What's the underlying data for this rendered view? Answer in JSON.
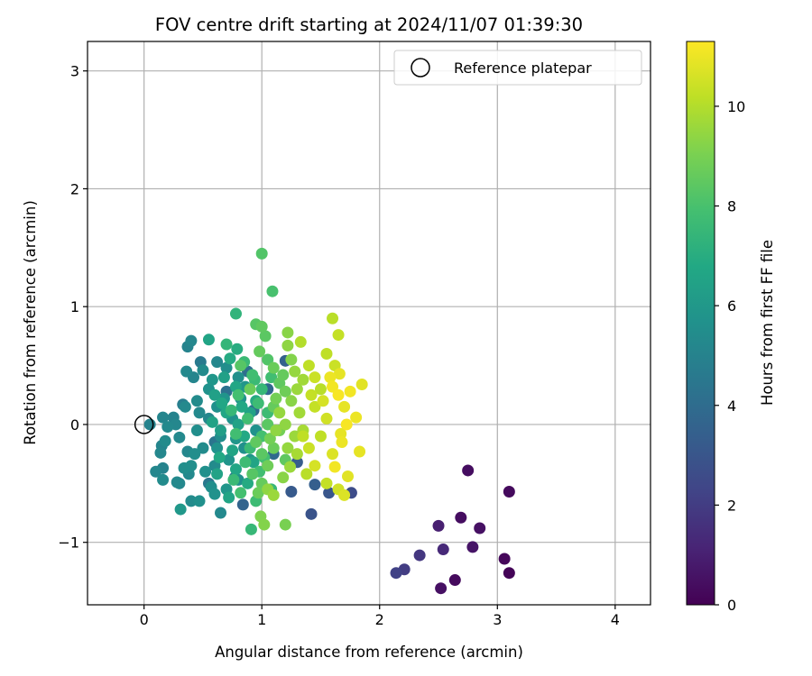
{
  "chart_data": {
    "type": "scatter",
    "title": "FOV centre drift starting at 2024/11/07 01:39:30",
    "xlabel": "Angular distance from reference (arcmin)",
    "ylabel": "Rotation from reference (arcmin)",
    "xlim": [
      -0.48,
      4.3
    ],
    "ylim": [
      -1.53,
      3.25
    ],
    "xticks": [
      0,
      1,
      2,
      3,
      4
    ],
    "yticks": [
      -1,
      0,
      1,
      2,
      3
    ],
    "grid": true,
    "legend": {
      "placement": "top-right",
      "entries": [
        "Reference platepar"
      ]
    },
    "reference_point": {
      "name": "Reference platepar",
      "x": 0,
      "y": 0,
      "marker": "open-circle"
    },
    "colorbar": {
      "label": "Hours from first FF file",
      "min": 0,
      "max": 11.3,
      "ticks": [
        0,
        2,
        4,
        6,
        8,
        10
      ],
      "colormap": "viridis"
    },
    "points": [
      {
        "x": 2.75,
        "y": -0.39,
        "c": 0.4
      },
      {
        "x": 3.1,
        "y": -0.57,
        "c": 0.3
      },
      {
        "x": 2.5,
        "y": -0.86,
        "c": 1.0
      },
      {
        "x": 2.69,
        "y": -0.79,
        "c": 0.4
      },
      {
        "x": 2.85,
        "y": -0.88,
        "c": 0.5
      },
      {
        "x": 2.54,
        "y": -1.06,
        "c": 1.3
      },
      {
        "x": 2.79,
        "y": -1.04,
        "c": 0.6
      },
      {
        "x": 3.06,
        "y": -1.14,
        "c": 0.2
      },
      {
        "x": 3.1,
        "y": -1.26,
        "c": 0.1
      },
      {
        "x": 2.34,
        "y": -1.11,
        "c": 1.8
      },
      {
        "x": 2.21,
        "y": -1.23,
        "c": 2.0
      },
      {
        "x": 2.14,
        "y": -1.26,
        "c": 2.2
      },
      {
        "x": 2.52,
        "y": -1.39,
        "c": 0.5
      },
      {
        "x": 2.64,
        "y": -1.32,
        "c": 0.3
      },
      {
        "x": 1.76,
        "y": -0.58,
        "c": 2.6
      },
      {
        "x": 1.42,
        "y": -0.76,
        "c": 2.9
      },
      {
        "x": 1.25,
        "y": -0.57,
        "c": 3.2
      },
      {
        "x": 1.45,
        "y": -0.51,
        "c": 3.4
      },
      {
        "x": 1.57,
        "y": -0.58,
        "c": 3.0
      },
      {
        "x": 0.84,
        "y": -0.68,
        "c": 3.6
      },
      {
        "x": 1.2,
        "y": 0.54,
        "c": 3.5
      },
      {
        "x": 1.05,
        "y": 0.3,
        "c": 3.8
      },
      {
        "x": 0.93,
        "y": 0.12,
        "c": 4.0
      },
      {
        "x": 1.3,
        "y": -0.32,
        "c": 3.3
      },
      {
        "x": 0.7,
        "y": 0.28,
        "c": 4.2
      },
      {
        "x": 0.6,
        "y": -0.15,
        "c": 4.4
      },
      {
        "x": 0.48,
        "y": 0.53,
        "c": 4.6
      },
      {
        "x": 0.33,
        "y": 0.17,
        "c": 4.8
      },
      {
        "x": 0.77,
        "y": -0.45,
        "c": 4.3
      },
      {
        "x": 1.1,
        "y": -0.25,
        "c": 3.9
      },
      {
        "x": 0.55,
        "y": -0.5,
        "c": 4.5
      },
      {
        "x": 0.88,
        "y": 0.45,
        "c": 4.1
      },
      {
        "x": 0.37,
        "y": 0.66,
        "c": 5.0
      },
      {
        "x": 0.4,
        "y": 0.71,
        "c": 5.2
      },
      {
        "x": 0.36,
        "y": 0.45,
        "c": 5.3
      },
      {
        "x": 0.42,
        "y": 0.4,
        "c": 5.1
      },
      {
        "x": 0.5,
        "y": 0.46,
        "c": 5.4
      },
      {
        "x": 0.62,
        "y": 0.53,
        "c": 5.2
      },
      {
        "x": 0.7,
        "y": 0.48,
        "c": 5.5
      },
      {
        "x": 0.8,
        "y": 0.4,
        "c": 5.6
      },
      {
        "x": 0.35,
        "y": 0.15,
        "c": 5.3
      },
      {
        "x": 0.45,
        "y": 0.2,
        "c": 5.4
      },
      {
        "x": 0.55,
        "y": 0.05,
        "c": 5.2
      },
      {
        "x": 0.65,
        "y": -0.1,
        "c": 5.5
      },
      {
        "x": 0.75,
        "y": 0.05,
        "c": 5.7
      },
      {
        "x": 0.85,
        "y": -0.2,
        "c": 5.6
      },
      {
        "x": 0.9,
        "y": -0.3,
        "c": 5.8
      },
      {
        "x": 0.6,
        "y": -0.35,
        "c": 5.4
      },
      {
        "x": 0.52,
        "y": -0.4,
        "c": 5.6
      },
      {
        "x": 0.4,
        "y": -0.35,
        "c": 5.5
      },
      {
        "x": 0.38,
        "y": -0.42,
        "c": 5.3
      },
      {
        "x": 0.34,
        "y": -0.37,
        "c": 5.5
      },
      {
        "x": 0.3,
        "y": -0.5,
        "c": 5.2
      },
      {
        "x": 0.4,
        "y": -0.65,
        "c": 5.4
      },
      {
        "x": 0.47,
        "y": -0.65,
        "c": 5.6
      },
      {
        "x": 0.6,
        "y": -0.59,
        "c": 5.7
      },
      {
        "x": 0.65,
        "y": -0.75,
        "c": 5.3
      },
      {
        "x": 0.57,
        "y": -0.53,
        "c": 5.5
      },
      {
        "x": 0.7,
        "y": -0.55,
        "c": 5.9
      },
      {
        "x": 0.8,
        "y": -0.47,
        "c": 5.6
      },
      {
        "x": 0.72,
        "y": -0.3,
        "c": 5.8
      },
      {
        "x": 0.5,
        "y": -0.2,
        "c": 5.4
      },
      {
        "x": 0.45,
        "y": -0.05,
        "c": 5.5
      },
      {
        "x": 0.55,
        "y": 0.3,
        "c": 5.7
      },
      {
        "x": 0.62,
        "y": 0.15,
        "c": 5.6
      },
      {
        "x": 0.68,
        "y": 0.22,
        "c": 5.8
      },
      {
        "x": 0.58,
        "y": 0.38,
        "c": 5.9
      },
      {
        "x": 0.47,
        "y": 0.1,
        "c": 5.3
      },
      {
        "x": 0.43,
        "y": -0.25,
        "c": 5.5
      },
      {
        "x": 0.62,
        "y": -0.2,
        "c": 5.7
      },
      {
        "x": 0.86,
        "y": 0.32,
        "c": 5.9
      },
      {
        "x": 0.82,
        "y": 0.22,
        "c": 5.8
      },
      {
        "x": 0.95,
        "y": -0.05,
        "c": 5.7
      },
      {
        "x": 0.78,
        "y": -0.12,
        "c": 5.9
      },
      {
        "x": 0.05,
        "y": 0.0,
        "c": 5.0
      },
      {
        "x": 0.16,
        "y": 0.06,
        "c": 5.1
      },
      {
        "x": 0.2,
        "y": -0.02,
        "c": 5.3
      },
      {
        "x": 0.25,
        "y": 0.06,
        "c": 5.0
      },
      {
        "x": 0.27,
        "y": 0.0,
        "c": 5.2
      },
      {
        "x": 0.15,
        "y": -0.18,
        "c": 5.1
      },
      {
        "x": 0.18,
        "y": -0.14,
        "c": 5.4
      },
      {
        "x": 0.3,
        "y": -0.11,
        "c": 5.3
      },
      {
        "x": 0.1,
        "y": -0.4,
        "c": 5.2
      },
      {
        "x": 0.16,
        "y": -0.37,
        "c": 5.0
      },
      {
        "x": 0.16,
        "y": -0.47,
        "c": 5.4
      },
      {
        "x": 0.14,
        "y": -0.24,
        "c": 5.2
      },
      {
        "x": 0.28,
        "y": -0.49,
        "c": 5.3
      },
      {
        "x": 0.37,
        "y": -0.23,
        "c": 5.2
      },
      {
        "x": 0.31,
        "y": -0.72,
        "c": 6.0
      },
      {
        "x": 0.55,
        "y": 0.72,
        "c": 6.6
      },
      {
        "x": 0.6,
        "y": 0.25,
        "c": 6.4
      },
      {
        "x": 0.7,
        "y": 0.1,
        "c": 6.7
      },
      {
        "x": 0.8,
        "y": 0.0,
        "c": 6.5
      },
      {
        "x": 0.65,
        "y": -0.05,
        "c": 6.3
      },
      {
        "x": 0.75,
        "y": -0.22,
        "c": 6.6
      },
      {
        "x": 0.85,
        "y": -0.1,
        "c": 6.8
      },
      {
        "x": 0.9,
        "y": 0.1,
        "c": 6.5
      },
      {
        "x": 0.95,
        "y": 0.2,
        "c": 6.9
      },
      {
        "x": 0.78,
        "y": 0.32,
        "c": 6.7
      },
      {
        "x": 0.68,
        "y": 0.4,
        "c": 6.4
      },
      {
        "x": 0.73,
        "y": 0.56,
        "c": 6.9
      },
      {
        "x": 0.79,
        "y": 0.64,
        "c": 7.0
      },
      {
        "x": 0.62,
        "y": -0.42,
        "c": 6.5
      },
      {
        "x": 0.78,
        "y": -0.38,
        "c": 6.7
      },
      {
        "x": 0.88,
        "y": -0.5,
        "c": 6.9
      },
      {
        "x": 0.72,
        "y": -0.62,
        "c": 6.6
      },
      {
        "x": 0.64,
        "y": -0.28,
        "c": 6.8
      },
      {
        "x": 0.93,
        "y": -0.32,
        "c": 6.6
      },
      {
        "x": 0.83,
        "y": 0.15,
        "c": 6.8
      },
      {
        "x": 0.58,
        "y": 0.02,
        "c": 6.5
      },
      {
        "x": 0.66,
        "y": 0.18,
        "c": 6.7
      },
      {
        "x": 0.78,
        "y": 0.94,
        "c": 7.3
      },
      {
        "x": 0.91,
        "y": -0.89,
        "c": 7.5
      },
      {
        "x": 0.7,
        "y": 0.68,
        "c": 7.4
      },
      {
        "x": 0.85,
        "y": 0.53,
        "c": 7.6
      },
      {
        "x": 0.92,
        "y": 0.42,
        "c": 7.8
      },
      {
        "x": 1.0,
        "y": 0.3,
        "c": 7.5
      },
      {
        "x": 1.05,
        "y": 0.1,
        "c": 7.7
      },
      {
        "x": 1.0,
        "y": -0.1,
        "c": 7.9
      },
      {
        "x": 0.9,
        "y": -0.2,
        "c": 7.6
      },
      {
        "x": 0.98,
        "y": -0.4,
        "c": 7.8
      },
      {
        "x": 1.08,
        "y": -0.55,
        "c": 7.5
      },
      {
        "x": 0.95,
        "y": -0.65,
        "c": 7.7
      },
      {
        "x": 0.82,
        "y": -0.58,
        "c": 7.9
      },
      {
        "x": 0.76,
        "y": -0.47,
        "c": 7.6
      },
      {
        "x": 0.88,
        "y": 0.05,
        "c": 7.8
      },
      {
        "x": 0.97,
        "y": 0.18,
        "c": 7.7
      },
      {
        "x": 0.8,
        "y": 0.25,
        "c": 7.9
      },
      {
        "x": 0.74,
        "y": 0.12,
        "c": 7.5
      },
      {
        "x": 0.86,
        "y": -0.32,
        "c": 7.7
      },
      {
        "x": 1.02,
        "y": -0.28,
        "c": 7.9
      },
      {
        "x": 0.94,
        "y": 0.38,
        "c": 7.6
      },
      {
        "x": 1.08,
        "y": 0.4,
        "c": 7.8
      },
      {
        "x": 0.78,
        "y": -0.08,
        "c": 7.8
      },
      {
        "x": 1.0,
        "y": 1.45,
        "c": 8.2
      },
      {
        "x": 1.09,
        "y": 1.13,
        "c": 8.0
      },
      {
        "x": 0.95,
        "y": 0.85,
        "c": 8.3
      },
      {
        "x": 1.0,
        "y": 0.83,
        "c": 8.5
      },
      {
        "x": 1.03,
        "y": 0.75,
        "c": 8.4
      },
      {
        "x": 0.98,
        "y": 0.62,
        "c": 8.6
      },
      {
        "x": 1.05,
        "y": 0.55,
        "c": 8.2
      },
      {
        "x": 1.1,
        "y": 0.48,
        "c": 8.7
      },
      {
        "x": 1.15,
        "y": 0.35,
        "c": 8.5
      },
      {
        "x": 1.2,
        "y": 0.28,
        "c": 8.8
      },
      {
        "x": 1.1,
        "y": 0.15,
        "c": 8.6
      },
      {
        "x": 1.05,
        "y": 0.0,
        "c": 8.4
      },
      {
        "x": 1.15,
        "y": -0.05,
        "c": 8.9
      },
      {
        "x": 1.1,
        "y": -0.2,
        "c": 8.7
      },
      {
        "x": 1.2,
        "y": -0.3,
        "c": 8.5
      },
      {
        "x": 1.05,
        "y": -0.35,
        "c": 8.8
      },
      {
        "x": 1.0,
        "y": -0.5,
        "c": 8.6
      },
      {
        "x": 0.92,
        "y": -0.42,
        "c": 8.3
      },
      {
        "x": 0.95,
        "y": -0.15,
        "c": 8.5
      },
      {
        "x": 1.12,
        "y": 0.22,
        "c": 8.9
      },
      {
        "x": 1.0,
        "y": -0.25,
        "c": 8.4
      },
      {
        "x": 0.97,
        "y": -0.58,
        "c": 8.7
      },
      {
        "x": 0.82,
        "y": 0.5,
        "c": 8.3
      },
      {
        "x": 1.18,
        "y": 0.42,
        "c": 8.6
      },
      {
        "x": 0.9,
        "y": 0.3,
        "c": 8.7
      },
      {
        "x": 1.07,
        "y": -0.12,
        "c": 8.9
      },
      {
        "x": 0.99,
        "y": -0.78,
        "c": 9.1
      },
      {
        "x": 1.02,
        "y": -0.85,
        "c": 9.2
      },
      {
        "x": 1.2,
        "y": -0.85,
        "c": 9.0
      },
      {
        "x": 1.22,
        "y": 0.78,
        "c": 9.3
      },
      {
        "x": 1.22,
        "y": 0.67,
        "c": 9.4
      },
      {
        "x": 1.25,
        "y": 0.55,
        "c": 9.2
      },
      {
        "x": 1.28,
        "y": 0.45,
        "c": 9.5
      },
      {
        "x": 1.3,
        "y": 0.3,
        "c": 9.6
      },
      {
        "x": 1.25,
        "y": 0.2,
        "c": 9.3
      },
      {
        "x": 1.32,
        "y": 0.1,
        "c": 9.7
      },
      {
        "x": 1.2,
        "y": 0.0,
        "c": 9.4
      },
      {
        "x": 1.28,
        "y": -0.1,
        "c": 9.6
      },
      {
        "x": 1.22,
        "y": -0.2,
        "c": 9.5
      },
      {
        "x": 1.3,
        "y": -0.25,
        "c": 9.8
      },
      {
        "x": 1.18,
        "y": -0.45,
        "c": 9.3
      },
      {
        "x": 1.1,
        "y": -0.6,
        "c": 9.6
      },
      {
        "x": 1.05,
        "y": -0.55,
        "c": 9.4
      },
      {
        "x": 1.35,
        "y": 0.38,
        "c": 9.7
      },
      {
        "x": 1.15,
        "y": 0.1,
        "c": 9.5
      },
      {
        "x": 1.35,
        "y": -0.05,
        "c": 9.8
      },
      {
        "x": 1.24,
        "y": -0.36,
        "c": 9.6
      },
      {
        "x": 1.12,
        "y": -0.05,
        "c": 9.4
      },
      {
        "x": 1.6,
        "y": 0.9,
        "c": 10.1
      },
      {
        "x": 1.65,
        "y": 0.76,
        "c": 10.3
      },
      {
        "x": 1.33,
        "y": 0.7,
        "c": 10.0
      },
      {
        "x": 1.4,
        "y": 0.5,
        "c": 10.2
      },
      {
        "x": 1.45,
        "y": 0.4,
        "c": 10.4
      },
      {
        "x": 1.5,
        "y": 0.3,
        "c": 10.1
      },
      {
        "x": 1.45,
        "y": 0.15,
        "c": 10.3
      },
      {
        "x": 1.55,
        "y": 0.05,
        "c": 10.5
      },
      {
        "x": 1.5,
        "y": -0.1,
        "c": 10.2
      },
      {
        "x": 1.4,
        "y": -0.2,
        "c": 10.4
      },
      {
        "x": 1.45,
        "y": -0.35,
        "c": 10.6
      },
      {
        "x": 1.55,
        "y": -0.5,
        "c": 10.3
      },
      {
        "x": 1.65,
        "y": -0.55,
        "c": 10.5
      },
      {
        "x": 1.6,
        "y": -0.25,
        "c": 10.7
      },
      {
        "x": 1.55,
        "y": 0.6,
        "c": 10.2
      },
      {
        "x": 1.62,
        "y": 0.5,
        "c": 10.4
      },
      {
        "x": 1.38,
        "y": -0.42,
        "c": 10.1
      },
      {
        "x": 1.52,
        "y": 0.2,
        "c": 10.6
      },
      {
        "x": 1.42,
        "y": 0.25,
        "c": 10.3
      },
      {
        "x": 1.35,
        "y": -0.1,
        "c": 10.2
      },
      {
        "x": 1.83,
        "y": -0.23,
        "c": 10.9
      },
      {
        "x": 1.8,
        "y": 0.06,
        "c": 11.0
      },
      {
        "x": 1.85,
        "y": 0.34,
        "c": 10.8
      },
      {
        "x": 1.75,
        "y": 0.28,
        "c": 11.1
      },
      {
        "x": 1.7,
        "y": 0.15,
        "c": 10.9
      },
      {
        "x": 1.72,
        "y": 0.0,
        "c": 11.2
      },
      {
        "x": 1.68,
        "y": -0.15,
        "c": 11.0
      },
      {
        "x": 1.73,
        "y": -0.44,
        "c": 10.8
      },
      {
        "x": 1.62,
        "y": -0.36,
        "c": 11.1
      },
      {
        "x": 1.66,
        "y": 0.43,
        "c": 10.9
      },
      {
        "x": 1.58,
        "y": 0.4,
        "c": 11.0
      },
      {
        "x": 1.65,
        "y": 0.25,
        "c": 11.2
      },
      {
        "x": 1.6,
        "y": 0.32,
        "c": 11.1
      },
      {
        "x": 1.67,
        "y": -0.08,
        "c": 10.9
      },
      {
        "x": 1.7,
        "y": -0.6,
        "c": 10.7
      }
    ]
  }
}
